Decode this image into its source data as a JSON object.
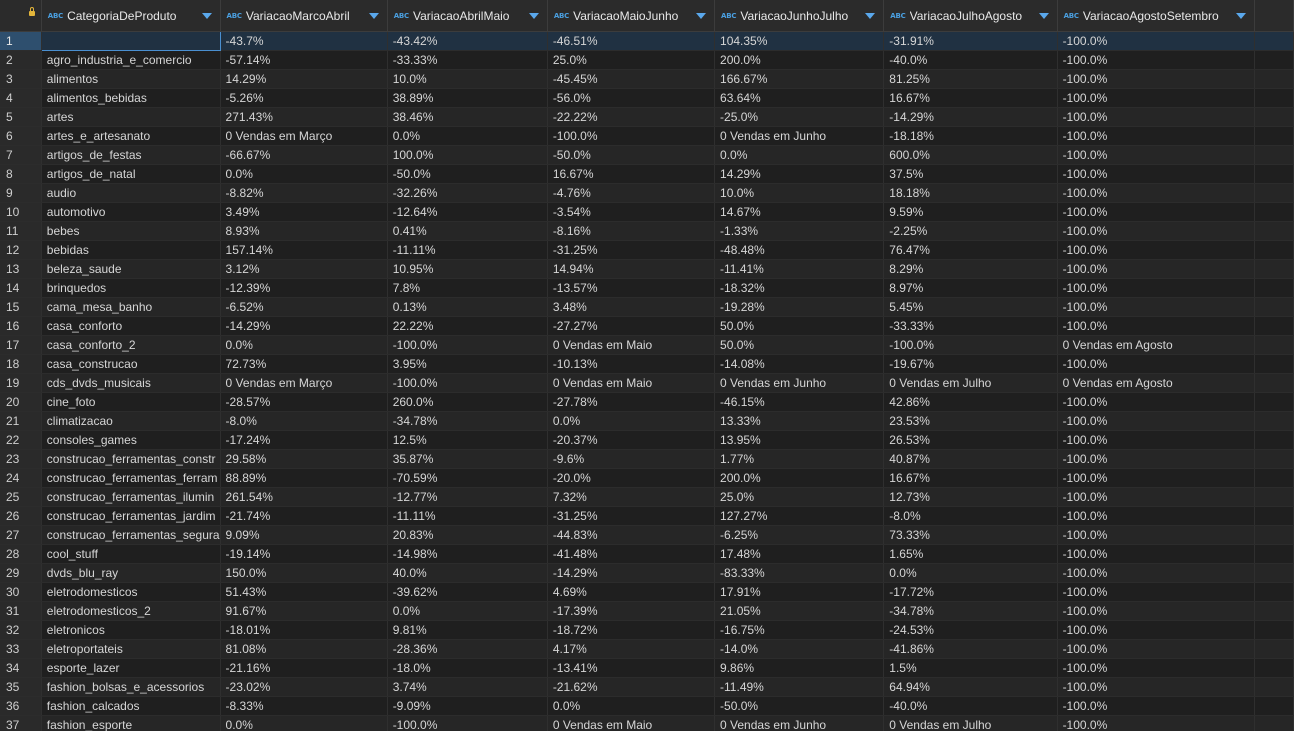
{
  "header": {
    "columns": [
      {
        "type": "ABC",
        "name": "CategoriaDeProduto"
      },
      {
        "type": "ABC",
        "name": "VariacaoMarcoAbril"
      },
      {
        "type": "ABC",
        "name": "VariacaoAbrilMaio"
      },
      {
        "type": "ABC",
        "name": "VariacaoMaioJunho"
      },
      {
        "type": "ABC",
        "name": "VariacaoJunhoJulho"
      },
      {
        "type": "ABC",
        "name": "VariacaoJulhoAgosto"
      },
      {
        "type": "ABC",
        "name": "VariacaoAgostoSetembro"
      }
    ]
  },
  "rows": [
    [
      "1",
      "",
      "-43.7%",
      "-43.42%",
      "-46.51%",
      "104.35%",
      "-31.91%",
      "-100.0%"
    ],
    [
      "2",
      "agro_industria_e_comercio",
      "-57.14%",
      "-33.33%",
      "25.0%",
      "200.0%",
      "-40.0%",
      "-100.0%"
    ],
    [
      "3",
      "alimentos",
      "14.29%",
      "10.0%",
      "-45.45%",
      "166.67%",
      "81.25%",
      "-100.0%"
    ],
    [
      "4",
      "alimentos_bebidas",
      "-5.26%",
      "38.89%",
      "-56.0%",
      "63.64%",
      "16.67%",
      "-100.0%"
    ],
    [
      "5",
      "artes",
      "271.43%",
      "38.46%",
      "-22.22%",
      "-25.0%",
      "-14.29%",
      "-100.0%"
    ],
    [
      "6",
      "artes_e_artesanato",
      "0 Vendas em Março",
      "0.0%",
      "-100.0%",
      "0 Vendas em Junho",
      "-18.18%",
      "-100.0%"
    ],
    [
      "7",
      "artigos_de_festas",
      "-66.67%",
      "100.0%",
      "-50.0%",
      "0.0%",
      "600.0%",
      "-100.0%"
    ],
    [
      "8",
      "artigos_de_natal",
      "0.0%",
      "-50.0%",
      "16.67%",
      "14.29%",
      "37.5%",
      "-100.0%"
    ],
    [
      "9",
      "audio",
      "-8.82%",
      "-32.26%",
      "-4.76%",
      "10.0%",
      "18.18%",
      "-100.0%"
    ],
    [
      "10",
      "automotivo",
      "3.49%",
      "-12.64%",
      "-3.54%",
      "14.67%",
      "9.59%",
      "-100.0%"
    ],
    [
      "11",
      "bebes",
      "8.93%",
      "0.41%",
      "-8.16%",
      "-1.33%",
      "-2.25%",
      "-100.0%"
    ],
    [
      "12",
      "bebidas",
      "157.14%",
      "-11.11%",
      "-31.25%",
      "-48.48%",
      "76.47%",
      "-100.0%"
    ],
    [
      "13",
      "beleza_saude",
      "3.12%",
      "10.95%",
      "14.94%",
      "-11.41%",
      "8.29%",
      "-100.0%"
    ],
    [
      "14",
      "brinquedos",
      "-12.39%",
      "7.8%",
      "-13.57%",
      "-18.32%",
      "8.97%",
      "-100.0%"
    ],
    [
      "15",
      "cama_mesa_banho",
      "-6.52%",
      "0.13%",
      "3.48%",
      "-19.28%",
      "5.45%",
      "-100.0%"
    ],
    [
      "16",
      "casa_conforto",
      "-14.29%",
      "22.22%",
      "-27.27%",
      "50.0%",
      "-33.33%",
      "-100.0%"
    ],
    [
      "17",
      "casa_conforto_2",
      "0.0%",
      "-100.0%",
      "0 Vendas em Maio",
      "50.0%",
      "-100.0%",
      "0 Vendas em Agosto"
    ],
    [
      "18",
      "casa_construcao",
      "72.73%",
      "3.95%",
      "-10.13%",
      "-14.08%",
      "-19.67%",
      "-100.0%"
    ],
    [
      "19",
      "cds_dvds_musicais",
      "0 Vendas em Março",
      "-100.0%",
      "0 Vendas em Maio",
      "0 Vendas em Junho",
      "0 Vendas em Julho",
      "0 Vendas em Agosto"
    ],
    [
      "20",
      "cine_foto",
      "-28.57%",
      "260.0%",
      "-27.78%",
      "-46.15%",
      "42.86%",
      "-100.0%"
    ],
    [
      "21",
      "climatizacao",
      "-8.0%",
      "-34.78%",
      "0.0%",
      "13.33%",
      "23.53%",
      "-100.0%"
    ],
    [
      "22",
      "consoles_games",
      "-17.24%",
      "12.5%",
      "-20.37%",
      "13.95%",
      "26.53%",
      "-100.0%"
    ],
    [
      "23",
      "construcao_ferramentas_constr",
      "29.58%",
      "35.87%",
      "-9.6%",
      "1.77%",
      "40.87%",
      "-100.0%"
    ],
    [
      "24",
      "construcao_ferramentas_ferram",
      "88.89%",
      "-70.59%",
      "-20.0%",
      "200.0%",
      "16.67%",
      "-100.0%"
    ],
    [
      "25",
      "construcao_ferramentas_ilumin",
      "261.54%",
      "-12.77%",
      "7.32%",
      "25.0%",
      "12.73%",
      "-100.0%"
    ],
    [
      "26",
      "construcao_ferramentas_jardim",
      "-21.74%",
      "-11.11%",
      "-31.25%",
      "127.27%",
      "-8.0%",
      "-100.0%"
    ],
    [
      "27",
      "construcao_ferramentas_segura",
      "9.09%",
      "20.83%",
      "-44.83%",
      "-6.25%",
      "73.33%",
      "-100.0%"
    ],
    [
      "28",
      "cool_stuff",
      "-19.14%",
      "-14.98%",
      "-41.48%",
      "17.48%",
      "1.65%",
      "-100.0%"
    ],
    [
      "29",
      "dvds_blu_ray",
      "150.0%",
      "40.0%",
      "-14.29%",
      "-83.33%",
      "0.0%",
      "-100.0%"
    ],
    [
      "30",
      "eletrodomesticos",
      "51.43%",
      "-39.62%",
      "4.69%",
      "17.91%",
      "-17.72%",
      "-100.0%"
    ],
    [
      "31",
      "eletrodomesticos_2",
      "91.67%",
      "0.0%",
      "-17.39%",
      "21.05%",
      "-34.78%",
      "-100.0%"
    ],
    [
      "32",
      "eletronicos",
      "-18.01%",
      "9.81%",
      "-18.72%",
      "-16.75%",
      "-24.53%",
      "-100.0%"
    ],
    [
      "33",
      "eletroportateis",
      "81.08%",
      "-28.36%",
      "4.17%",
      "-14.0%",
      "-41.86%",
      "-100.0%"
    ],
    [
      "34",
      "esporte_lazer",
      "-21.16%",
      "-18.0%",
      "-13.41%",
      "9.86%",
      "1.5%",
      "-100.0%"
    ],
    [
      "35",
      "fashion_bolsas_e_acessorios",
      "-23.02%",
      "3.74%",
      "-21.62%",
      "-11.49%",
      "64.94%",
      "-100.0%"
    ],
    [
      "36",
      "fashion_calcados",
      "-8.33%",
      "-9.09%",
      "0.0%",
      "-50.0%",
      "-40.0%",
      "-100.0%"
    ],
    [
      "37",
      "fashion_esporte",
      "0.0%",
      "-100.0%",
      "0 Vendas em Maio",
      "0 Vendas em Junho",
      "0 Vendas em Julho",
      "-100.0%"
    ]
  ]
}
